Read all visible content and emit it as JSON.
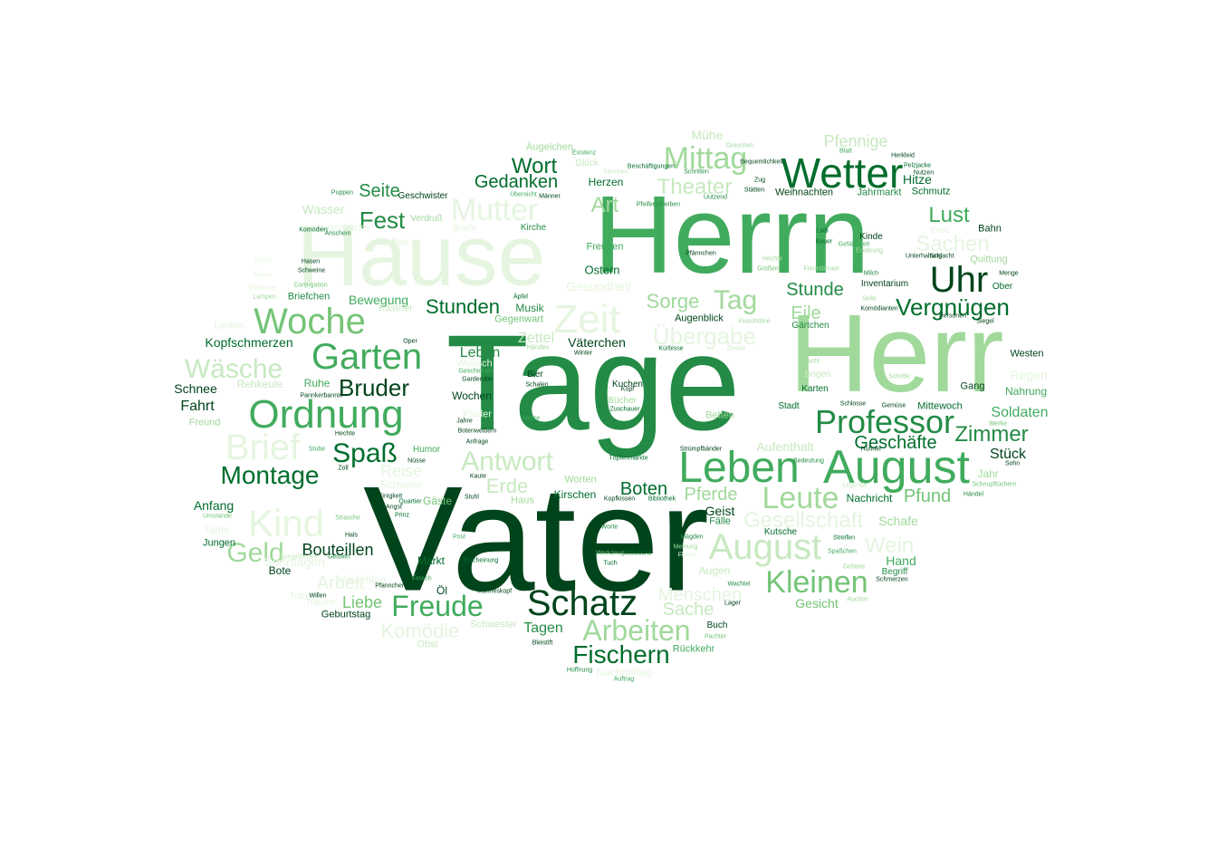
{
  "palette": {
    "c1": "#00441b",
    "c2": "#006d2c",
    "c3": "#238b45",
    "c4": "#41ab5d",
    "c5": "#74c476",
    "c6": "#a1d99b",
    "c7": "#c7e9c0",
    "c8": "#e5f5e0"
  },
  "words": [
    {
      "t": "Vater",
      "c": "c1"
    },
    {
      "t": "Tage",
      "c": "c3"
    },
    {
      "t": "Herrn",
      "c": "c4"
    },
    {
      "t": "Herr",
      "c": "c6"
    },
    {
      "t": "Hause",
      "c": "c8"
    },
    {
      "t": "August",
      "c": "c4"
    },
    {
      "t": "Leben",
      "c": "c4"
    },
    {
      "t": "Schatz",
      "c": "c1"
    },
    {
      "t": "Zeit",
      "c": "c8"
    },
    {
      "t": "Wetter",
      "c": "c2"
    },
    {
      "t": "Uhr",
      "c": "c1"
    },
    {
      "t": "Professor",
      "c": "c3"
    },
    {
      "t": "Ordnung",
      "c": "c4"
    },
    {
      "t": "Garten",
      "c": "c4"
    },
    {
      "t": "Woche",
      "c": "c5"
    },
    {
      "t": "Mutter",
      "c": "c8"
    },
    {
      "t": "Kind",
      "c": "c8"
    },
    {
      "t": "Brief",
      "c": "c8"
    },
    {
      "t": "August",
      "c": "c7"
    },
    {
      "t": "Leute",
      "c": "c6"
    },
    {
      "t": "Mittag",
      "c": "c6"
    },
    {
      "t": "Tag",
      "c": "c6"
    },
    {
      "t": "Arbeiten",
      "c": "c6"
    },
    {
      "t": "Freude",
      "c": "c4"
    },
    {
      "t": "Fischern",
      "c": "c2"
    },
    {
      "t": "Kleinen",
      "c": "c5"
    },
    {
      "t": "Montage",
      "c": "c2"
    },
    {
      "t": "Antwort",
      "c": "c7"
    },
    {
      "t": "Vergnügen",
      "c": "c2"
    },
    {
      "t": "Wäsche",
      "c": "c7"
    },
    {
      "t": "Spaß",
      "c": "c2"
    },
    {
      "t": "Geld",
      "c": "c6"
    },
    {
      "t": "Wort",
      "c": "c2"
    },
    {
      "t": "Gedanken",
      "c": "c2"
    },
    {
      "t": "Stunden",
      "c": "c2"
    },
    {
      "t": "Bruder",
      "c": "c1"
    },
    {
      "t": "Fest",
      "c": "c3"
    },
    {
      "t": "Zimmer",
      "c": "c3"
    },
    {
      "t": "Art",
      "c": "c6"
    },
    {
      "t": "Theater",
      "c": "c7"
    },
    {
      "t": "Übergabe",
      "c": "c8"
    },
    {
      "t": "Lust",
      "c": "c4"
    },
    {
      "t": "Sachen",
      "c": "c8"
    },
    {
      "t": "Stunde",
      "c": "c3"
    },
    {
      "t": "Sorge",
      "c": "c6"
    },
    {
      "t": "Eile",
      "c": "c6"
    },
    {
      "t": "Seite",
      "c": "c3"
    },
    {
      "t": "Boten",
      "c": "c2"
    },
    {
      "t": "Geschäfte",
      "c": "c2"
    },
    {
      "t": "Pfund",
      "c": "c5"
    },
    {
      "t": "Gesellschaft",
      "c": "c8"
    },
    {
      "t": "Pferde",
      "c": "c6"
    },
    {
      "t": "Wein",
      "c": "c8"
    },
    {
      "t": "Erde",
      "c": "c7"
    },
    {
      "t": "Menschen",
      "c": "c8"
    },
    {
      "t": "Sache",
      "c": "c7"
    },
    {
      "t": "Bouteillen",
      "c": "c1"
    },
    {
      "t": "Komödie",
      "c": "c8"
    },
    {
      "t": "Liebe",
      "c": "c5"
    },
    {
      "t": "Arbeit",
      "c": "c8"
    },
    {
      "t": "Pfennige",
      "c": "c7"
    },
    {
      "t": "Soldaten",
      "c": "c4"
    },
    {
      "t": "Kopfschmerzen",
      "c": "c2"
    },
    {
      "t": "Fahrt",
      "c": "c1"
    },
    {
      "t": "Schnee",
      "c": "c1"
    },
    {
      "t": "Anfang",
      "c": "c2"
    },
    {
      "t": "Leben",
      "c": "c3"
    },
    {
      "t": "Mühe",
      "c": "c7"
    },
    {
      "t": "Zettel",
      "c": "c7"
    },
    {
      "t": "Reise",
      "c": "c8"
    },
    {
      "t": "Bewegung",
      "c": "c4"
    },
    {
      "t": "Wasser",
      "c": "c7"
    },
    {
      "t": "Aufenthalt",
      "c": "c7"
    },
    {
      "t": "Gesicht",
      "c": "c5"
    },
    {
      "t": "Tagen",
      "c": "c3"
    },
    {
      "t": "Kirschen",
      "c": "c2"
    },
    {
      "t": "Väterchen",
      "c": "c1"
    },
    {
      "t": "Musik",
      "c": "c3"
    },
    {
      "t": "Augen",
      "c": "c7"
    },
    {
      "t": "Stück",
      "c": "c1"
    },
    {
      "t": "Jahr",
      "c": "c6"
    },
    {
      "t": "Geist",
      "c": "c1"
    },
    {
      "t": "Hand",
      "c": "c4"
    },
    {
      "t": "Wochen",
      "c": "c1"
    },
    {
      "t": "Karten",
      "c": "c2"
    },
    {
      "t": "Bogen",
      "c": "c7"
    },
    {
      "t": "Stadt",
      "c": "c2"
    },
    {
      "t": "Nachricht",
      "c": "c2"
    },
    {
      "t": "Kutsche",
      "c": "c2"
    },
    {
      "t": "Schafe",
      "c": "c6"
    },
    {
      "t": "Ruhe",
      "c": "c4"
    },
    {
      "t": "Rehkeule",
      "c": "c7"
    },
    {
      "t": "Freund",
      "c": "c6"
    },
    {
      "t": "Herzen",
      "c": "c2"
    },
    {
      "t": "Kuchen",
      "c": "c1"
    },
    {
      "t": "Freuden",
      "c": "c4"
    },
    {
      "t": "Ostern",
      "c": "c2"
    },
    {
      "t": "Kirche",
      "c": "c3"
    },
    {
      "t": "Gesundheit",
      "c": "c8"
    },
    {
      "t": "Weihnachten",
      "c": "c1"
    },
    {
      "t": "Jahrmarkt",
      "c": "c3"
    },
    {
      "t": "Hitze",
      "c": "c2"
    },
    {
      "t": "Schmutz",
      "c": "c2"
    },
    {
      "t": "Bahn",
      "c": "c1"
    },
    {
      "t": "Kinde",
      "c": "c1"
    },
    {
      "t": "Inventarium",
      "c": "c1"
    },
    {
      "t": "Quittung",
      "c": "c6"
    },
    {
      "t": "Ober",
      "c": "c2"
    },
    {
      "t": "Westen",
      "c": "c1"
    },
    {
      "t": "Regen",
      "c": "c8"
    },
    {
      "t": "Nahrung",
      "c": "c4"
    },
    {
      "t": "Gang",
      "c": "c1"
    },
    {
      "t": "Mittewoch",
      "c": "c2"
    },
    {
      "t": "Augenblick",
      "c": "c1"
    },
    {
      "t": "Gärtchen",
      "c": "c3"
    },
    {
      "t": "Betten",
      "c": "c6"
    },
    {
      "t": "Bücher",
      "c": "c6"
    },
    {
      "t": "Worten",
      "c": "c6"
    },
    {
      "t": "Humor",
      "c": "c4"
    },
    {
      "t": "Haus",
      "c": "c6"
    },
    {
      "t": "Bier",
      "c": "c1"
    },
    {
      "t": "Leuten",
      "c": "c8"
    },
    {
      "t": "Wunsch",
      "c": "c8"
    },
    {
      "t": "Kinder",
      "c": "c8"
    },
    {
      "t": "Briefchen",
      "c": "c3"
    },
    {
      "t": "Gegenwart",
      "c": "c5"
    },
    {
      "t": "Geschwister",
      "c": "c1"
    },
    {
      "t": "Verdruß",
      "c": "c6"
    },
    {
      "t": "Briefe",
      "c": "c8"
    },
    {
      "t": "Äugelchen",
      "c": "c6"
    },
    {
      "t": "Glück",
      "c": "c7"
    },
    {
      "t": "Kästner",
      "c": "c7"
    },
    {
      "t": "Tante",
      "c": "c8"
    },
    {
      "t": "Jungen",
      "c": "c2"
    },
    {
      "t": "Bote",
      "c": "c1"
    },
    {
      "t": "Geburtstag",
      "c": "c1"
    },
    {
      "t": "Markt",
      "c": "c2"
    },
    {
      "t": "Öl",
      "c": "c1"
    },
    {
      "t": "Schwester",
      "c": "c7"
    },
    {
      "t": "Obst",
      "c": "c7"
    },
    {
      "t": "Rückkehr",
      "c": "c4"
    },
    {
      "t": "Buch",
      "c": "c1"
    },
    {
      "t": "Fälle",
      "c": "c3"
    },
    {
      "t": "Begriff",
      "c": "c3"
    },
    {
      "t": "Gäste",
      "c": "c5"
    },
    {
      "t": "Sonntagen",
      "c": "c8"
    },
    {
      "t": "Nachmittag",
      "c": "c8"
    },
    {
      "t": "Vorschlag",
      "c": "c8"
    },
    {
      "t": "Augenblicke",
      "c": "c8"
    },
    {
      "t": "Schwere",
      "c": "c8"
    },
    {
      "t": "Träume",
      "c": "c8"
    },
    {
      "t": "Tränen",
      "c": "c8"
    },
    {
      "t": "Kaffee",
      "c": "c8"
    },
    {
      "t": "Ende",
      "c": "c8"
    },
    {
      "t": "Stimme",
      "c": "c8"
    },
    {
      "t": "Sonne",
      "c": "c8"
    },
    {
      "t": "Noten",
      "c": "c8"
    },
    {
      "t": "Lampen",
      "c": "c6"
    },
    {
      "t": "Hasen",
      "c": "c1"
    },
    {
      "t": "Schweine",
      "c": "c1"
    },
    {
      "t": "Conjugation",
      "c": "c5"
    },
    {
      "t": "Komödien",
      "c": "c2"
    },
    {
      "t": "Anschein",
      "c": "c3"
    },
    {
      "t": "Puppen",
      "c": "c3"
    },
    {
      "t": "Übersicht",
      "c": "c4"
    },
    {
      "t": "Männer",
      "c": "c1"
    },
    {
      "t": "Äpfel",
      "c": "c2"
    },
    {
      "t": "Oper",
      "c": "c1"
    },
    {
      "t": "Händen",
      "c": "c6"
    },
    {
      "t": "Winter",
      "c": "c1"
    },
    {
      "t": "Kürbisse",
      "c": "c2"
    },
    {
      "t": "Zinsen",
      "c": "c7"
    },
    {
      "t": "Geschichten",
      "c": "c4"
    },
    {
      "t": "Garderobe",
      "c": "c1"
    },
    {
      "t": "Schalen",
      "c": "c1"
    },
    {
      "t": "Pannkerbannin",
      "c": "c1"
    },
    {
      "t": "Jahre",
      "c": "c1"
    },
    {
      "t": "Botenweibern",
      "c": "c1"
    },
    {
      "t": "Anfrage",
      "c": "c1"
    },
    {
      "t": "Nüsse",
      "c": "c1"
    },
    {
      "t": "Zoll",
      "c": "c1"
    },
    {
      "t": "Kaute",
      "c": "c1"
    },
    {
      "t": "Hechte",
      "c": "c1"
    },
    {
      "t": "Stube",
      "c": "c4"
    },
    {
      "t": "Einigkeit",
      "c": "c1"
    },
    {
      "t": "Quartier",
      "c": "c2"
    },
    {
      "t": "Angst",
      "c": "c1"
    },
    {
      "t": "Prinz",
      "c": "c2"
    },
    {
      "t": "Stuhl",
      "c": "c1"
    },
    {
      "t": "Strasche",
      "c": "c5"
    },
    {
      "t": "Hals",
      "c": "c1"
    },
    {
      "t": "Kopf",
      "c": "c1"
    },
    {
      "t": "Zuschauer",
      "c": "c2"
    },
    {
      "t": "Nutze",
      "c": "c4"
    },
    {
      "t": "Töpfenmarkte",
      "c": "c2"
    },
    {
      "t": "Kopfkissen",
      "c": "c1"
    },
    {
      "t": "Bibliothek",
      "c": "c2"
    },
    {
      "t": "Strümpfbänder",
      "c": "c1"
    },
    {
      "t": "Bedeutung",
      "c": "c3"
    },
    {
      "t": "Worte",
      "c": "c3"
    },
    {
      "t": "Post",
      "c": "c4"
    },
    {
      "t": "Werkzeug",
      "c": "c5"
    },
    {
      "t": "Mittwoche",
      "c": "c2"
    },
    {
      "t": "Erscheinung",
      "c": "c2"
    },
    {
      "t": "Tuch",
      "c": "c2"
    },
    {
      "t": "Meinung",
      "c": "c6"
    },
    {
      "t": "Flanell",
      "c": "c8"
    },
    {
      "t": "Mägden",
      "c": "c3"
    },
    {
      "t": "Wachtel",
      "c": "c3"
    },
    {
      "t": "Lager",
      "c": "c1"
    },
    {
      "t": "Pachter",
      "c": "c5"
    },
    {
      "t": "Bleistift",
      "c": "c1"
    },
    {
      "t": "Hoffnung",
      "c": "c3"
    },
    {
      "t": "Auftrag",
      "c": "c4"
    },
    {
      "t": "Pfannchen",
      "c": "c1"
    },
    {
      "t": "Frosch",
      "c": "c4"
    },
    {
      "t": "Willen",
      "c": "c1"
    },
    {
      "t": "Manneskopf",
      "c": "c1"
    },
    {
      "t": "Umstande",
      "c": "c5"
    },
    {
      "t": "Spiegelbeden",
      "c": "c7"
    },
    {
      "t": "Geisten",
      "c": "c3"
    },
    {
      "t": "Streifen",
      "c": "c2"
    },
    {
      "t": "Spaßchen",
      "c": "c4"
    },
    {
      "t": "Gebiete",
      "c": "c6"
    },
    {
      "t": "Schmerzen",
      "c": "c1"
    },
    {
      "t": "Auction",
      "c": "c6"
    },
    {
      "t": "Legende",
      "c": "c7"
    },
    {
      "t": "Hühner",
      "c": "c1"
    },
    {
      "t": "Händel",
      "c": "c3"
    },
    {
      "t": "Schnupftüchern",
      "c": "c5"
    },
    {
      "t": "Sohn",
      "c": "c1"
    },
    {
      "t": "Werke",
      "c": "c5"
    },
    {
      "t": "Schlosse",
      "c": "c1"
    },
    {
      "t": "Gemüse",
      "c": "c1"
    },
    {
      "t": "Schritte",
      "c": "c6"
    },
    {
      "t": "Pacht",
      "c": "c6"
    },
    {
      "t": "Seite",
      "c": "c6"
    },
    {
      "t": "Komödianten",
      "c": "c1"
    },
    {
      "t": "Siegel",
      "c": "c1"
    },
    {
      "t": "Personen",
      "c": "c1"
    },
    {
      "t": "Menge",
      "c": "c1"
    },
    {
      "t": "Unterhaltung",
      "c": "c1"
    },
    {
      "t": "Schlacht",
      "c": "c1"
    },
    {
      "t": "Milch",
      "c": "c3"
    },
    {
      "t": "Freundinnen",
      "c": "c6"
    },
    {
      "t": "Größen",
      "c": "c5"
    },
    {
      "t": "Erklärung",
      "c": "c6"
    },
    {
      "t": "Bauer",
      "c": "c2"
    },
    {
      "t": "Laib",
      "c": "c2"
    },
    {
      "t": "Herkleid",
      "c": "c1"
    },
    {
      "t": "Pelzjacke",
      "c": "c2"
    },
    {
      "t": "Nutzen",
      "c": "c1"
    },
    {
      "t": "Blatt",
      "c": "c4"
    },
    {
      "t": "Schritten",
      "c": "c3"
    },
    {
      "t": "Uutzend",
      "c": "c3"
    },
    {
      "t": "Groschen",
      "c": "c6"
    },
    {
      "t": "Zug",
      "c": "c1"
    },
    {
      "t": "Stätten",
      "c": "c1"
    },
    {
      "t": "Bequemlichkeit",
      "c": "c1"
    },
    {
      "t": "Pfeiferscheiben",
      "c": "c3"
    },
    {
      "t": "Beschäftigungen",
      "c": "c2"
    },
    {
      "t": "Pfännchen",
      "c": "c1"
    },
    {
      "t": "Froschtöne",
      "c": "c6"
    },
    {
      "t": "Hechte",
      "c": "c6"
    },
    {
      "t": "Fänchen",
      "c": "c7"
    },
    {
      "t": "Existenz",
      "c": "c4"
    },
    {
      "t": "Gefälligkeit",
      "c": "c4"
    },
    {
      "t": "Nacht",
      "c": "c4"
    },
    {
      "t": "Gäster",
      "c": "c5"
    },
    {
      "t": "Liebe",
      "c": "c8"
    },
    {
      "t": "Neuigkeit",
      "c": "c4"
    },
    {
      "t": "Notiel",
      "c": "c1"
    },
    {
      "t": "Hühner",
      "c": "c7"
    }
  ]
}
